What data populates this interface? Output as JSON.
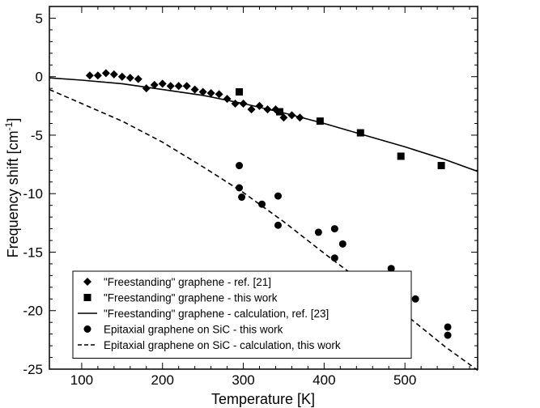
{
  "chart_data": {
    "type": "scatter",
    "xlabel": "Temperature [K]",
    "ylabel_main": "Frequency shift [cm",
    "ylabel_sup": "-1",
    "ylabel_close": "]",
    "xlim": [
      60,
      590
    ],
    "ylim": [
      -25,
      6
    ],
    "xticks": [
      100,
      200,
      300,
      400,
      500
    ],
    "yticks": [
      5,
      0,
      -5,
      -10,
      -15,
      -20,
      -25
    ],
    "legend_position": "bottom-left",
    "series": [
      {
        "name": "\"Freestanding\" graphene - ref. [21]",
        "marker": "diamond",
        "x": [
          110,
          120,
          130,
          140,
          150,
          160,
          170,
          180,
          190,
          200,
          210,
          220,
          230,
          240,
          250,
          260,
          270,
          280,
          290,
          300,
          310,
          320,
          330,
          340,
          350,
          360,
          370
        ],
        "y": [
          0.1,
          0.1,
          0.3,
          0.2,
          0.0,
          -0.1,
          -0.2,
          -1.0,
          -0.7,
          -0.6,
          -0.8,
          -0.8,
          -0.8,
          -1.1,
          -1.3,
          -1.4,
          -1.5,
          -1.9,
          -2.3,
          -2.3,
          -2.8,
          -2.5,
          -2.8,
          -2.8,
          -3.5,
          -3.3,
          -3.5
        ]
      },
      {
        "name": "\"Freestanding\" graphene - this work",
        "marker": "square",
        "x": [
          295,
          345,
          395,
          445,
          495,
          545
        ],
        "y": [
          -1.3,
          -3.0,
          -3.8,
          -4.8,
          -6.8,
          -7.6
        ]
      },
      {
        "name": "\"Freestanding\" graphene - calculation, ref. [23]",
        "line": "solid",
        "x": [
          60,
          100,
          150,
          200,
          250,
          300,
          350,
          400,
          450,
          500,
          550,
          590
        ],
        "y": [
          -0.1,
          -0.3,
          -0.6,
          -1.1,
          -1.6,
          -2.3,
          -3.1,
          -4.0,
          -5.0,
          -6.0,
          -7.1,
          -8.1
        ]
      },
      {
        "name": "Epitaxial graphene on SiC - this work",
        "marker": "circle",
        "x": [
          295,
          295,
          298,
          323,
          343,
          343,
          393,
          413,
          413,
          423,
          483,
          483,
          513,
          553,
          553
        ],
        "y": [
          -7.6,
          -9.5,
          -10.3,
          -10.9,
          -10.2,
          -12.7,
          -13.3,
          -13.0,
          -15.5,
          -14.3,
          -16.4,
          -17.5,
          -19.0,
          -21.4,
          -22.1
        ]
      },
      {
        "name": "Epitaxial graphene on SiC - calculation, this work",
        "line": "dashed",
        "x": [
          60,
          100,
          150,
          200,
          250,
          300,
          350,
          400,
          450,
          500,
          550,
          590
        ],
        "y": [
          -1.1,
          -2.3,
          -3.8,
          -5.6,
          -7.7,
          -9.9,
          -12.4,
          -15.1,
          -17.7,
          -20.3,
          -23.1,
          -25.1
        ]
      }
    ]
  }
}
